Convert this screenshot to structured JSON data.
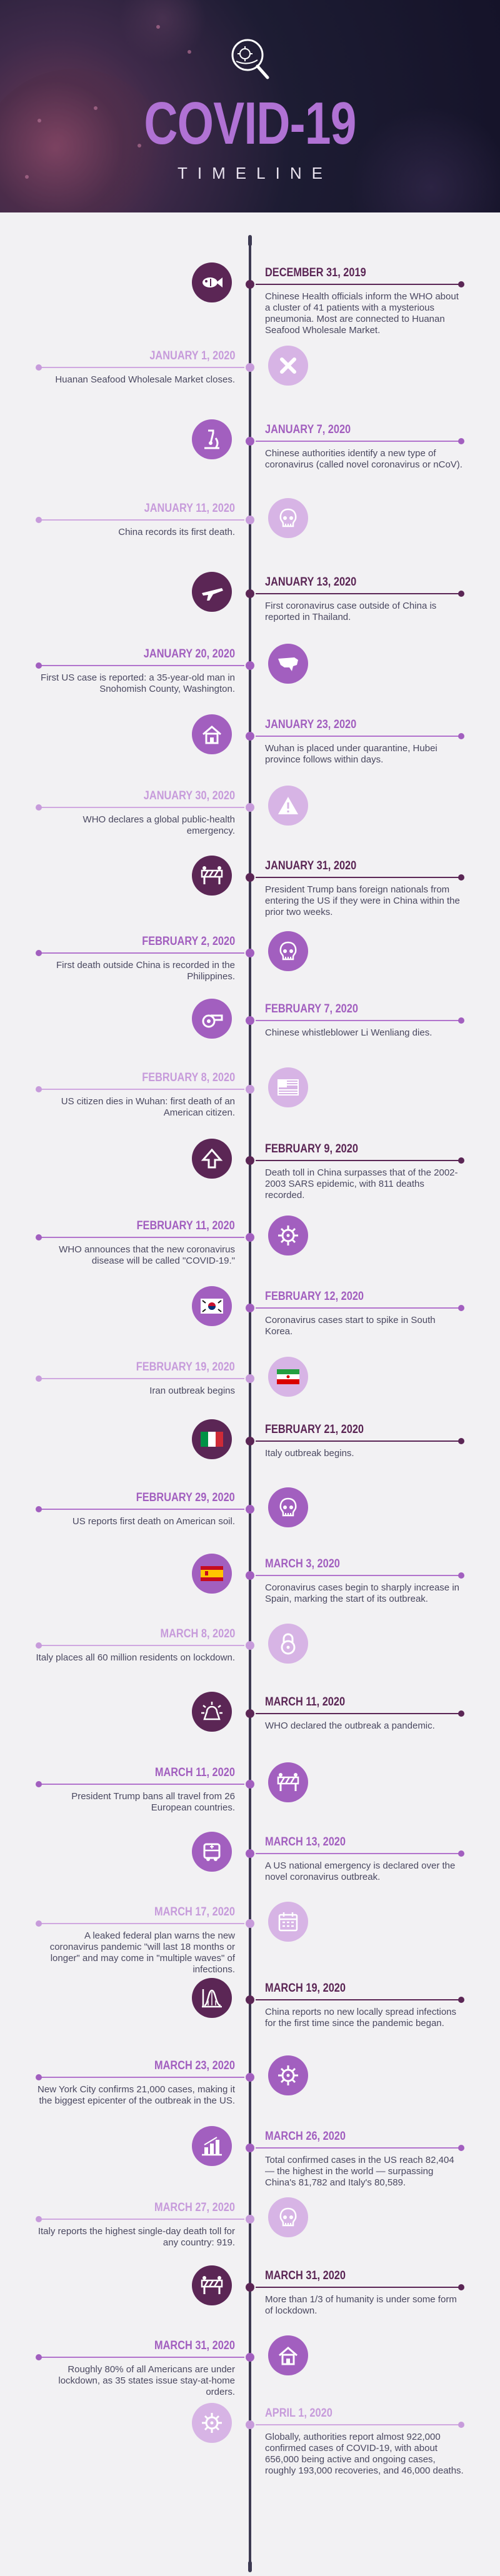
{
  "header": {
    "title": "COVID-19",
    "subtitle": "TIMELINE"
  },
  "colors": {
    "dark": "#5b2655",
    "mid": "#a25fbf",
    "light": "#d7b4e5",
    "axis": "#3d3a52",
    "background": "#f2f1f3"
  },
  "events": [
    {
      "date": "DECEMBER 31, 2019",
      "text": "Chinese Health officials inform the WHO about a cluster of 41 patients with a mysterious pneumonia. Most are connected to Huanan Seafood Wholesale Market.",
      "icon": "fish-icon"
    },
    {
      "date": "JANUARY 1, 2020",
      "text": "Huanan Seafood Wholesale Market closes.",
      "icon": "close-icon"
    },
    {
      "date": "JANUARY 7, 2020",
      "text": "Chinese authorities identify a new type of coronavirus (called novel coronavirus or nCoV).",
      "icon": "microscope-icon"
    },
    {
      "date": "JANUARY 11, 2020",
      "text": "China records its first death.",
      "icon": "skull-icon"
    },
    {
      "date": "JANUARY 13, 2020",
      "text": "First coronavirus case outside of China is reported in Thailand.",
      "icon": "airplane-icon"
    },
    {
      "date": "JANUARY 20, 2020",
      "text": "First US case is reported: a 35-year-old man in Snohomish County, Washington.",
      "icon": "usa-map-icon"
    },
    {
      "date": "JANUARY 23, 2020",
      "text": "Wuhan is placed under quarantine, Hubei province follows within days.",
      "icon": "house-icon"
    },
    {
      "date": "JANUARY 30, 2020",
      "text": "WHO declares a global public-health emergency.",
      "icon": "warning-icon"
    },
    {
      "date": "JANUARY 31, 2020",
      "text": "President Trump bans foreign nationals from entering the US if they were in China within the prior two weeks.",
      "icon": "barrier-icon"
    },
    {
      "date": "FEBRUARY 2, 2020",
      "text": "First death outside China is recorded in the Philippines.",
      "icon": "skull-icon"
    },
    {
      "date": "FEBRUARY 7, 2020",
      "text": "Chinese whistleblower Li Wenliang dies.",
      "icon": "whistle-icon"
    },
    {
      "date": "FEBRUARY 8, 2020",
      "text": "US citizen dies in Wuhan: first death of an American citizen.",
      "icon": "us-flag-icon"
    },
    {
      "date": "FEBRUARY 9, 2020",
      "text": "Death toll in China surpasses that of the 2002-2003 SARS epidemic, with 811 deaths recorded.",
      "icon": "arrow-up-icon"
    },
    {
      "date": "FEBRUARY 11, 2020",
      "text": "WHO announces that the new coronavirus disease will be called \"COVID-19.\"",
      "icon": "virus-icon"
    },
    {
      "date": "FEBRUARY 12, 2020",
      "text": "Coronavirus cases start to spike in South Korea.",
      "icon": "south-korea-flag-icon"
    },
    {
      "date": "FEBRUARY 19, 2020",
      "text": "Iran outbreak begins",
      "icon": "iran-flag-icon"
    },
    {
      "date": "FEBRUARY 21, 2020",
      "text": "Italy outbreak begins.",
      "icon": "italy-flag-icon"
    },
    {
      "date": "FEBRUARY 29, 2020",
      "text": "US reports first death on American soil.",
      "icon": "skull-icon"
    },
    {
      "date": "MARCH 3, 2020",
      "text": "Coronavirus cases begin to sharply increase in Spain, marking the start of its outbreak.",
      "icon": "spain-flag-icon"
    },
    {
      "date": "MARCH 8, 2020",
      "text": "Italy places all 60 million residents on lockdown.",
      "icon": "lock-icon"
    },
    {
      "date": "MARCH 11, 2020",
      "text": "WHO declared the outbreak a pandemic.",
      "icon": "alarm-icon"
    },
    {
      "date": "MARCH 11, 2020",
      "text": "President Trump bans all travel from 26 European countries.",
      "icon": "barrier-icon"
    },
    {
      "date": "MARCH 13, 2020",
      "text": "A US national emergency is declared over the novel coronavirus outbreak.",
      "icon": "ambulance-icon"
    },
    {
      "date": "MARCH 17, 2020",
      "text": "A leaked federal plan warns the new coronavirus pandemic \"will last 18 months or longer\" and may come in \"multiple waves\" of infections.",
      "icon": "calendar-icon"
    },
    {
      "date": "MARCH 19, 2020",
      "text": "China reports no new locally spread infections for the first time since the pandemic began.",
      "icon": "bell-curve-icon"
    },
    {
      "date": "MARCH 23, 2020",
      "text": "New York City confirms 21,000 cases, making it the biggest epicenter of the outbreak in the US.",
      "icon": "virus-icon"
    },
    {
      "date": "MARCH 26, 2020",
      "text": "Total confirmed cases in the US reach 82,404 — the highest in the world — surpassing China's 81,782 and Italy's 80,589.",
      "icon": "bar-chart-icon"
    },
    {
      "date": "MARCH 27, 2020",
      "text": "Italy reports the highest single-day death toll for any country: 919.",
      "icon": "skull-icon"
    },
    {
      "date": "MARCH 31, 2020",
      "text": "More than 1/3 of humanity is under some form of lockdown.",
      "icon": "barrier-icon"
    },
    {
      "date": "MARCH 31, 2020",
      "text": "Roughly 80% of all Americans are under lockdown, as 35 states issue stay-at-home orders.",
      "icon": "house-icon"
    },
    {
      "date": "APRIL 1, 2020",
      "text": "Globally, authorities report almost 922,000 confirmed cases of COVID-19, with about 656,000 being active and ongoing cases, roughly 193,000 recoveries, and 46,000 deaths.",
      "icon": "virus-icon"
    }
  ]
}
